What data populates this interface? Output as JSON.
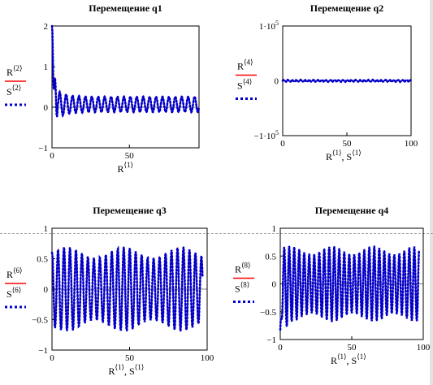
{
  "colors": {
    "background": "#ffffff",
    "frame": "#000000",
    "series_R": "#ff0000",
    "series_S": "#0000cc"
  },
  "chart_data": [
    {
      "type": "line",
      "title": "Перемещение q1",
      "xlabel": {
        "base": "R",
        "sup": "⟨1⟩",
        "tail": "",
        "tail_sup": ""
      },
      "ylabel": {
        "r_base": "R",
        "r_sup": "⟨2⟩",
        "s_base": "S",
        "s_sup": "⟨2⟩"
      },
      "xlim": [
        0,
        95
      ],
      "ylim": [
        -1,
        2
      ],
      "xticks": [
        {
          "v": 0,
          "label": "0"
        },
        {
          "v": 50,
          "label": "50"
        }
      ],
      "yticks": [
        {
          "v": 2,
          "label": "2"
        },
        {
          "v": 1,
          "label": "1"
        },
        {
          "v": 0,
          "label": "0"
        },
        {
          "v": -1,
          "label": "−1"
        }
      ],
      "zero_line": true,
      "signal": {
        "kind": "q1",
        "base": 0.07,
        "amp": 0.19,
        "period": 4.15,
        "phase": 0.3,
        "spike": 2.0,
        "spike_decay": 2.2,
        "x_end": 95
      },
      "series": [
        {
          "name": "R",
          "style": "solid-red"
        },
        {
          "name": "S",
          "style": "dotted-blue"
        }
      ]
    },
    {
      "type": "line",
      "title": "Перемещение q2",
      "xlabel": {
        "base": "R",
        "sup": "⟨1⟩",
        "tail": ", S",
        "tail_sup": "⟨1⟩"
      },
      "ylabel": {
        "r_base": "R",
        "r_sup": "⟨4⟩",
        "s_base": "S",
        "s_sup": "⟨4⟩"
      },
      "xlim": [
        0,
        100
      ],
      "ylim": [
        -100000,
        100000
      ],
      "xticks": [
        {
          "v": 0,
          "label": "0"
        },
        {
          "v": 50,
          "label": "50"
        },
        {
          "v": 100,
          "label": "100"
        }
      ],
      "yticks": [
        {
          "v": 100000,
          "label": "1·10",
          "exp": "5"
        },
        {
          "v": 0,
          "label": "0"
        },
        {
          "v": -100000,
          "label": "−1·10",
          "exp": "5"
        }
      ],
      "zero_line": false,
      "signal": {
        "kind": "flat",
        "amp": 1500,
        "period": 3.3,
        "x_end": 100
      },
      "series": [
        {
          "name": "R",
          "style": "solid-red"
        },
        {
          "name": "S",
          "style": "dotted-blue"
        }
      ]
    },
    {
      "type": "line",
      "title": "Перемещение q3",
      "xlabel": {
        "base": "R",
        "sup": "⟨1⟩",
        "tail": ", S",
        "tail_sup": "⟨1⟩"
      },
      "ylabel": {
        "r_base": "R",
        "r_sup": "⟨6⟩",
        "s_base": "S",
        "s_sup": "⟨6⟩"
      },
      "xlim": [
        0,
        100
      ],
      "ylim": [
        -1,
        1
      ],
      "xticks": [
        {
          "v": 0,
          "label": "0"
        },
        {
          "v": 50,
          "label": "50"
        },
        {
          "v": 100,
          "label": "100"
        }
      ],
      "yticks": [
        {
          "v": 1,
          "label": "1"
        },
        {
          "v": 0.5,
          "label": "0.5"
        },
        {
          "v": 0,
          "label": "0"
        },
        {
          "v": -0.5,
          "label": "−0.5"
        },
        {
          "v": -1,
          "label": "−1"
        }
      ],
      "zero_line": false,
      "signal": {
        "kind": "osc",
        "amp": 0.6,
        "period": 3.85,
        "phase": 1.5,
        "start": 0.0,
        "x_end": 97
      },
      "series": [
        {
          "name": "R",
          "style": "solid-red"
        },
        {
          "name": "S",
          "style": "dotted-blue"
        }
      ]
    },
    {
      "type": "line",
      "title": "Перемещение q4",
      "xlabel": {
        "base": "R",
        "sup": "⟨1⟩",
        "tail": ", S",
        "tail_sup": "⟨1⟩"
      },
      "ylabel": {
        "r_base": "R",
        "r_sup": "⟨8⟩",
        "s_base": "S",
        "s_sup": "⟨8⟩"
      },
      "xlim": [
        0,
        100
      ],
      "ylim": [
        -1,
        1
      ],
      "xticks": [
        {
          "v": 0,
          "label": "0"
        },
        {
          "v": 50,
          "label": "50"
        },
        {
          "v": 100,
          "label": "100"
        }
      ],
      "yticks": [
        {
          "v": 1,
          "label": "1"
        },
        {
          "v": 0.5,
          "label": "0.5"
        },
        {
          "v": 0,
          "label": "0"
        },
        {
          "v": -0.5,
          "label": "−0.5"
        },
        {
          "v": -1,
          "label": "−1"
        }
      ],
      "zero_line": false,
      "signal": {
        "kind": "osc4",
        "amp": 0.6,
        "period": 3.5,
        "phase": 0.0,
        "start": -0.8,
        "x_end": 97
      },
      "series": [
        {
          "name": "R",
          "style": "solid-red"
        },
        {
          "name": "S",
          "style": "dotted-blue"
        }
      ]
    }
  ]
}
